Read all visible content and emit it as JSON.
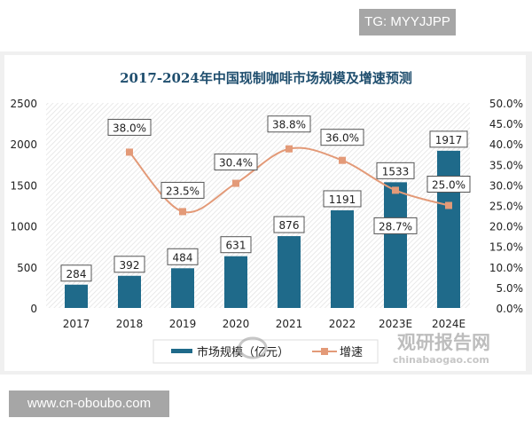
{
  "overlay": {
    "tg": "TG: MYYJJPP",
    "site": "www.cn-oboubo.com"
  },
  "watermark": {
    "cn": "观研报告网",
    "en": "chinabaogao.com"
  },
  "chart_data": {
    "type": "bar+line",
    "title": "2017-2024年中国现制咖啡市场规模及增速预测",
    "categories": [
      "2017",
      "2018",
      "2019",
      "2020",
      "2021",
      "2022",
      "2023E",
      "2024E"
    ],
    "series": [
      {
        "name": "市场规模（亿元）",
        "type": "bar",
        "axis": "left",
        "color": "#1f6a8a",
        "values": [
          284,
          392,
          484,
          631,
          876,
          1191,
          1533,
          1917
        ],
        "labels": [
          "284",
          "392",
          "484",
          "631",
          "876",
          "1191",
          "1533",
          "1917"
        ]
      },
      {
        "name": "增速",
        "type": "line",
        "axis": "right",
        "color": "#e39a78",
        "values": [
          null,
          38.0,
          23.5,
          30.4,
          38.8,
          36.0,
          28.7,
          25.0
        ],
        "labels": [
          "",
          "38.0%",
          "23.5%",
          "30.4%",
          "38.8%",
          "36.0%",
          "28.7%",
          "25.0%"
        ]
      }
    ],
    "yleft": {
      "ticks": [
        "0",
        "500",
        "1000",
        "1500",
        "2000",
        "2500"
      ],
      "range": [
        0,
        2500
      ]
    },
    "yright": {
      "ticks": [
        "0.0%",
        "5.0%",
        "10.0%",
        "15.0%",
        "20.0%",
        "25.0%",
        "30.0%",
        "35.0%",
        "40.0%",
        "45.0%",
        "50.0%"
      ],
      "range": [
        0,
        50
      ]
    },
    "legend": "bottom"
  }
}
